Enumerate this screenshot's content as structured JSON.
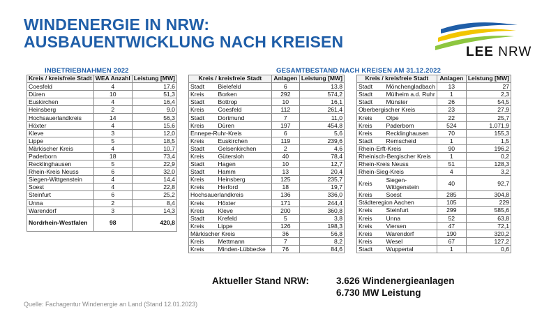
{
  "title_line1": "WINDENERGIE IN NRW:",
  "title_line2": "AUSBAUENTWICKLUNG NACH KREISEN",
  "logo": {
    "text_bold": "LEE",
    "text_rest": " NRW",
    "colors": [
      "#1f5ea8",
      "#f2c500",
      "#8dc63f"
    ]
  },
  "left_table": {
    "title": "INBETRIEBNAHMEN 2022",
    "headers": {
      "kreis": "Kreis / kreisfreie Stadt",
      "wea": "WEA Anzahl",
      "leistung": "Leistung [MW]"
    },
    "rows": [
      {
        "name": "Coesfeld",
        "wea": "4",
        "mw": "17,6"
      },
      {
        "name": "Düren",
        "wea": "10",
        "mw": "51,3"
      },
      {
        "name": "Euskirchen",
        "wea": "4",
        "mw": "16,4"
      },
      {
        "name": "Heinsberg",
        "wea": "2",
        "mw": "9,0"
      },
      {
        "name": "Hochsauerlandkreis",
        "wea": "14",
        "mw": "56,3"
      },
      {
        "name": "Höxter",
        "wea": "4",
        "mw": "15,6"
      },
      {
        "name": "Kleve",
        "wea": "3",
        "mw": "12,0"
      },
      {
        "name": "Lippe",
        "wea": "5",
        "mw": "18,5"
      },
      {
        "name": "Märkischer Kreis",
        "wea": "4",
        "mw": "10,7"
      },
      {
        "name": "Paderborn",
        "wea": "18",
        "mw": "73,4"
      },
      {
        "name": "Recklinghausen",
        "wea": "5",
        "mw": "22,9"
      },
      {
        "name": "Rhein-Kreis Neuss",
        "wea": "6",
        "mw": "32,0"
      },
      {
        "name": "Siegen-Wittgenstein",
        "wea": "4",
        "mw": "14,4"
      },
      {
        "name": "Soest",
        "wea": "4",
        "mw": "22,8"
      },
      {
        "name": "Steinfurt",
        "wea": "6",
        "mw": "25,2"
      },
      {
        "name": "Unna",
        "wea": "2",
        "mw": "8,4"
      },
      {
        "name": "Warendorf",
        "wea": "3",
        "mw": "14,3"
      }
    ],
    "total": {
      "name": "Nordrhein-Westfalen",
      "wea": "98",
      "mw": "420,8"
    }
  },
  "bestand_title": "GESAMTBESTAND NACH KREISEN AM 31.12.2022",
  "mid_table": {
    "headers": {
      "kreis": "Kreis / kreisfreie Stadt",
      "anlagen": "Anlagen",
      "leistung": "Leistung [MW]"
    },
    "rows": [
      {
        "typ": "Stadt",
        "name": "Bielefeld",
        "anlagen": "6",
        "mw": "13,8"
      },
      {
        "typ": "Kreis",
        "name": "Borken",
        "anlagen": "292",
        "mw": "574,2"
      },
      {
        "typ": "Stadt",
        "name": "Bottrop",
        "anlagen": "10",
        "mw": "16,1"
      },
      {
        "typ": "Kreis",
        "name": "Coesfeld",
        "anlagen": "112",
        "mw": "261,4"
      },
      {
        "typ": "Stadt",
        "name": "Dortmund",
        "anlagen": "7",
        "mw": "11,0"
      },
      {
        "typ": "Kreis",
        "name": "Düren",
        "anlagen": "197",
        "mw": "454,8"
      },
      {
        "typ": "",
        "name": "Ennepe-Ruhr-Kreis",
        "anlagen": "6",
        "mw": "5,6"
      },
      {
        "typ": "Kreis",
        "name": "Euskirchen",
        "anlagen": "119",
        "mw": "239,6"
      },
      {
        "typ": "Stadt",
        "name": "Gelsenkirchen",
        "anlagen": "2",
        "mw": "4,6"
      },
      {
        "typ": "Kreis",
        "name": "Gütersloh",
        "anlagen": "40",
        "mw": "78,4"
      },
      {
        "typ": "Stadt",
        "name": "Hagen",
        "anlagen": "10",
        "mw": "12,7"
      },
      {
        "typ": "Stadt",
        "name": "Hamm",
        "anlagen": "13",
        "mw": "20,4"
      },
      {
        "typ": "Kreis",
        "name": "Heinsberg",
        "anlagen": "125",
        "mw": "235,7"
      },
      {
        "typ": "Kreis",
        "name": "Herford",
        "anlagen": "18",
        "mw": "19,7"
      },
      {
        "typ": "",
        "name": "Hochsauerlandkreis",
        "anlagen": "136",
        "mw": "336,0"
      },
      {
        "typ": "Kreis",
        "name": "Höxter",
        "anlagen": "171",
        "mw": "244,4"
      },
      {
        "typ": "Kreis",
        "name": "Kleve",
        "anlagen": "200",
        "mw": "360,8"
      },
      {
        "typ": "Stadt",
        "name": "Krefeld",
        "anlagen": "5",
        "mw": "3,8"
      },
      {
        "typ": "Kreis",
        "name": "Lippe",
        "anlagen": "126",
        "mw": "198,3"
      },
      {
        "typ": "",
        "name": "Märkischer Kreis",
        "anlagen": "36",
        "mw": "56,8"
      },
      {
        "typ": "Kreis",
        "name": "Mettmann",
        "anlagen": "7",
        "mw": "8,2"
      },
      {
        "typ": "Kreis",
        "name": "Minden-Lübbecke",
        "anlagen": "76",
        "mw": "84,6"
      }
    ]
  },
  "right_table": {
    "headers": {
      "kreis": "Kreis / kreisfreie Stadt",
      "anlagen": "Anlagen",
      "leistung": "Leistung [MW]"
    },
    "rows": [
      {
        "typ": "Stadt",
        "name": "Mönchengladbach",
        "anlagen": "13",
        "mw": "27"
      },
      {
        "typ": "Stadt",
        "name": "Mülheim a.d. Ruhr",
        "anlagen": "1",
        "mw": "2,3"
      },
      {
        "typ": "Stadt",
        "name": "Münster",
        "anlagen": "26",
        "mw": "54,5"
      },
      {
        "typ": "",
        "name": "Oberbergischer Kreis",
        "anlagen": "23",
        "mw": "27,9"
      },
      {
        "typ": "Kreis",
        "name": "Olpe",
        "anlagen": "22",
        "mw": "25,7"
      },
      {
        "typ": "Kreis",
        "name": "Paderborn",
        "anlagen": "524",
        "mw": "1.071,9"
      },
      {
        "typ": "Kreis",
        "name": "Recklinghausen",
        "anlagen": "70",
        "mw": "155,3"
      },
      {
        "typ": "Stadt",
        "name": "Remscheid",
        "anlagen": "1",
        "mw": "1,5"
      },
      {
        "typ": "",
        "name": "Rhein-Erft-Kreis",
        "anlagen": "90",
        "mw": "196,2"
      },
      {
        "typ": "",
        "name": "Rheinisch-Bergischer Kreis",
        "anlagen": "1",
        "mw": "0,2"
      },
      {
        "typ": "",
        "name": "Rhein-Kreis Neuss",
        "anlagen": "51",
        "mw": "128,3"
      },
      {
        "typ": "",
        "name": "Rhein-Sieg-Kreis",
        "anlagen": "4",
        "mw": "3,2"
      },
      {
        "typ": "Kreis",
        "name": "Siegen-Wittgenstein",
        "anlagen": "40",
        "mw": "92,7",
        "tall": true
      },
      {
        "typ": "Kreis",
        "name": "Soest",
        "anlagen": "285",
        "mw": "304,8"
      },
      {
        "typ": "",
        "name": "Städteregion Aachen",
        "anlagen": "105",
        "mw": "229"
      },
      {
        "typ": "Kreis",
        "name": "Steinfurt",
        "anlagen": "299",
        "mw": "585,6"
      },
      {
        "typ": "Kreis",
        "name": "Unna",
        "anlagen": "52",
        "mw": "63,8"
      },
      {
        "typ": "Kreis",
        "name": "Viersen",
        "anlagen": "47",
        "mw": "72,1"
      },
      {
        "typ": "Kreis",
        "name": "Warendorf",
        "anlagen": "190",
        "mw": "320,2"
      },
      {
        "typ": "Kreis",
        "name": "Wesel",
        "anlagen": "67",
        "mw": "127,2"
      },
      {
        "typ": "Stadt",
        "name": "Wuppertal",
        "anlagen": "1",
        "mw": "0,6"
      }
    ]
  },
  "stand": {
    "label": "Aktueller Stand NRW:",
    "anlagen": "3.626 Windenergieanlagen",
    "leistung": "6.730 MW Leistung"
  },
  "source": "Quelle: Fachagentur Windenergie an Land (Stand 12.01.2023)"
}
